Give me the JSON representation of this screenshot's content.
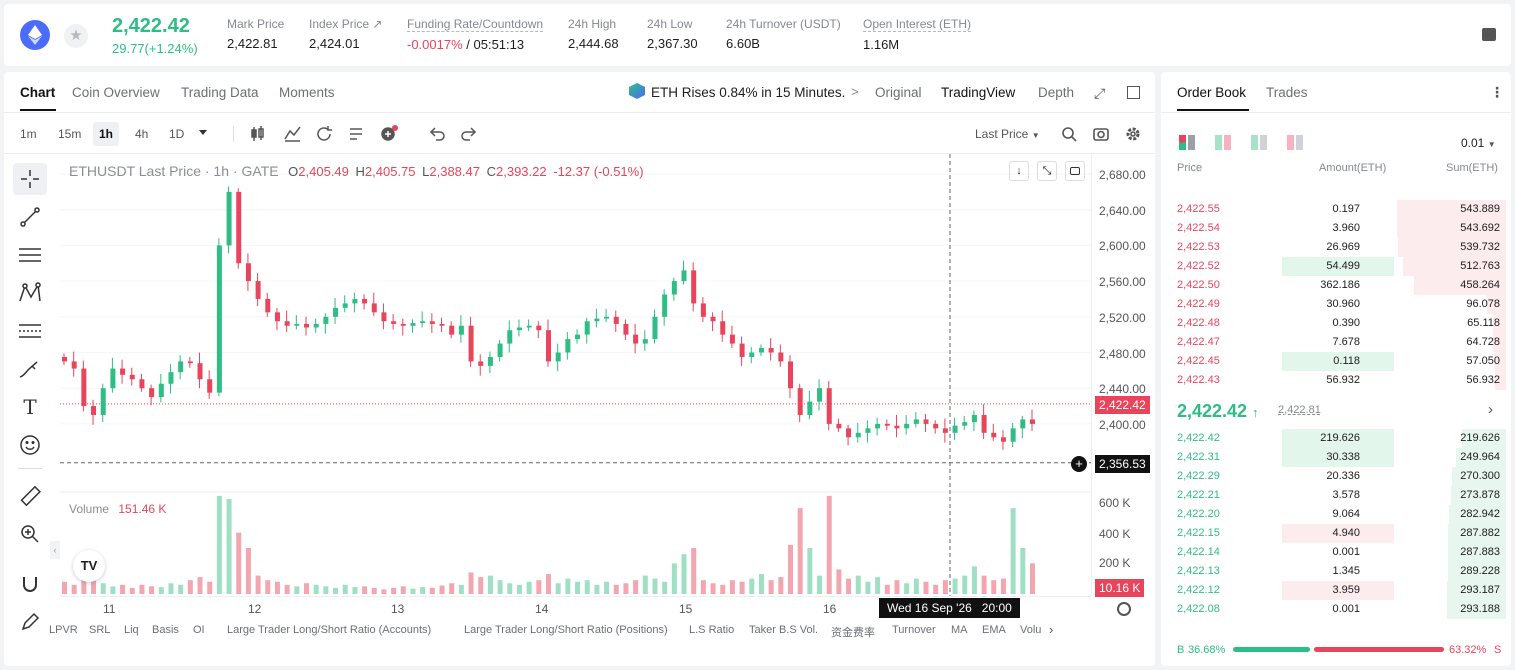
{
  "header": {
    "last_price": "2,422.42",
    "change": "29.77(+1.24%)",
    "stats": [
      {
        "label": "Mark Price",
        "value": "2,422.81"
      },
      {
        "label": "Index Price ↗",
        "value": "2,424.01"
      },
      {
        "label": "Funding Rate/Countdown",
        "value_a": "-0.0017%",
        "value_b": " / 05:51:13"
      },
      {
        "label": "24h High",
        "value": "2,444.68"
      },
      {
        "label": "24h Low",
        "value": "2,367.30"
      },
      {
        "label": "24h Turnover (USDT)",
        "value": "6.60B"
      },
      {
        "label": "Open Interest (ETH)",
        "value": "1.16M"
      }
    ]
  },
  "chart_tabs": [
    "Chart",
    "Coin Overview",
    "Trading Data",
    "Moments"
  ],
  "news": "ETH Rises 0.84% in 15 Minutes.",
  "news_arrow": ">",
  "views": [
    "Original",
    "TradingView",
    "Depth"
  ],
  "timeframes": [
    "1m",
    "15m",
    "1h",
    "4h",
    "1D"
  ],
  "price_type": "Last Price",
  "legend": {
    "symbol": "ETHUSDT Last Price · 1h · GATE",
    "o": "O",
    "ov": "2,405.49",
    "h": "H",
    "hv": "2,405.75",
    "l": "L",
    "lv": "2,388.47",
    "c": "C",
    "cv": "2,393.22",
    "chg": "-12.37 (-0.51%)"
  },
  "volume_label": "Volume",
  "volume_value": "151.46 K",
  "price_axis": [
    "2,680.00",
    "2,640.00",
    "2,600.00",
    "2,560.00",
    "2,520.00",
    "2,480.00",
    "2,440.00",
    "2,400.00"
  ],
  "current_price_tag": "2,422.42",
  "crosshair_price_tag": "2,356.53",
  "volume_axis": [
    "600 K",
    "400 K",
    "200 K"
  ],
  "volume_tag": "10.16 K",
  "date_axis": [
    "11",
    "12",
    "13",
    "14",
    "15",
    "16"
  ],
  "crosshair_time": "Wed 16 Sep '26   20:00",
  "indicators": [
    "LPVR",
    "SRL",
    "Liq",
    "Basis",
    "OI",
    "Large Trader Long/Short Ratio (Accounts)",
    "Large Trader Long/Short Ratio (Positions)",
    "L.S Ratio",
    "Taker B.S Vol.",
    "资金费率",
    "Turnover",
    "MA",
    "EMA",
    "Volu"
  ],
  "orderbook": {
    "tabs": [
      "Order Book",
      "Trades"
    ],
    "precision": "0.01",
    "cols": [
      "Price",
      "Amount(ETH)",
      "Sum(ETH)"
    ],
    "asks": [
      [
        "2,422.55",
        "0.197",
        "543.889"
      ],
      [
        "2,422.54",
        "3.960",
        "543.692"
      ],
      [
        "2,422.53",
        "26.969",
        "539.732"
      ],
      [
        "2,422.52",
        "54.499",
        "512.763"
      ],
      [
        "2,422.50",
        "362.186",
        "458.264"
      ],
      [
        "2,422.49",
        "30.960",
        "96.078"
      ],
      [
        "2,422.48",
        "0.390",
        "65.118"
      ],
      [
        "2,422.47",
        "7.678",
        "64.728"
      ],
      [
        "2,422.45",
        "0.118",
        "57.050"
      ],
      [
        "2,422.43",
        "56.932",
        "56.932"
      ]
    ],
    "mid_price": "2,422.42",
    "mid_arrow": "↑",
    "mid_mark": "2,422.81",
    "bids": [
      [
        "2,422.42",
        "219.626",
        "219.626"
      ],
      [
        "2,422.31",
        "30.338",
        "249.964"
      ],
      [
        "2,422.29",
        "20.336",
        "270.300"
      ],
      [
        "2,422.21",
        "3.578",
        "273.878"
      ],
      [
        "2,422.20",
        "9.064",
        "282.942"
      ],
      [
        "2,422.15",
        "4.940",
        "287.882"
      ],
      [
        "2,422.14",
        "0.001",
        "287.883"
      ],
      [
        "2,422.13",
        "1.345",
        "289.228"
      ],
      [
        "2,422.12",
        "3.959",
        "293.187"
      ],
      [
        "2,422.08",
        "0.001",
        "293.188"
      ]
    ],
    "buy_label": "B",
    "buy_pct": "36.68%",
    "sell_pct": "63.32%",
    "sell_label": "S",
    "buy_ratio": 0.3668
  },
  "chart_data": {
    "type": "candlestick",
    "symbol": "ETHUSDT",
    "interval": "1h",
    "ylim": [
      2360,
      2690
    ],
    "close_path": [
      2470,
      2462,
      2420,
      2410,
      2440,
      2462,
      2455,
      2450,
      2440,
      2430,
      2445,
      2458,
      2470,
      2468,
      2450,
      2435,
      2600,
      2660,
      2580,
      2560,
      2540,
      2525,
      2515,
      2510,
      2512,
      2508,
      2512,
      2520,
      2530,
      2535,
      2540,
      2535,
      2525,
      2515,
      2512,
      2510,
      2513,
      2515,
      2512,
      2510,
      2500,
      2510,
      2470,
      2465,
      2475,
      2490,
      2505,
      2508,
      2510,
      2505,
      2470,
      2480,
      2495,
      2500,
      2515,
      2518,
      2520,
      2512,
      2500,
      2490,
      2495,
      2520,
      2545,
      2560,
      2572,
      2535,
      2520,
      2515,
      2500,
      2490,
      2475,
      2480,
      2485,
      2480,
      2470,
      2440,
      2410,
      2425,
      2440,
      2400,
      2395,
      2385,
      2390,
      2395,
      2400,
      2398,
      2395,
      2400,
      2405,
      2400,
      2395,
      2390,
      2398,
      2402,
      2410,
      2390,
      2385,
      2380,
      2395,
      2405,
      2400,
      2395,
      2420,
      2425
    ],
    "volume_path": [
      80,
      60,
      150,
      90,
      70,
      50,
      60,
      40,
      60,
      50,
      45,
      70,
      60,
      90,
      110,
      80,
      640,
      620,
      400,
      300,
      120,
      90,
      80,
      60,
      50,
      70,
      60,
      50,
      40,
      60,
      45,
      50,
      40,
      30,
      40,
      50,
      35,
      45,
      40,
      55,
      70,
      60,
      140,
      110,
      120,
      90,
      70,
      60,
      80,
      90,
      130,
      70,
      100,
      80,
      90,
      60,
      80,
      60,
      70,
      90,
      120,
      100,
      80,
      200,
      260,
      300,
      90,
      70,
      60,
      90,
      80,
      100,
      130,
      90,
      110,
      320,
      560,
      300,
      120,
      640,
      160,
      100,
      120,
      80,
      110,
      60,
      90,
      70,
      100,
      80,
      60,
      90,
      100,
      120,
      180,
      120,
      90,
      100,
      560,
      300,
      200,
      150,
      130,
      90
    ]
  }
}
